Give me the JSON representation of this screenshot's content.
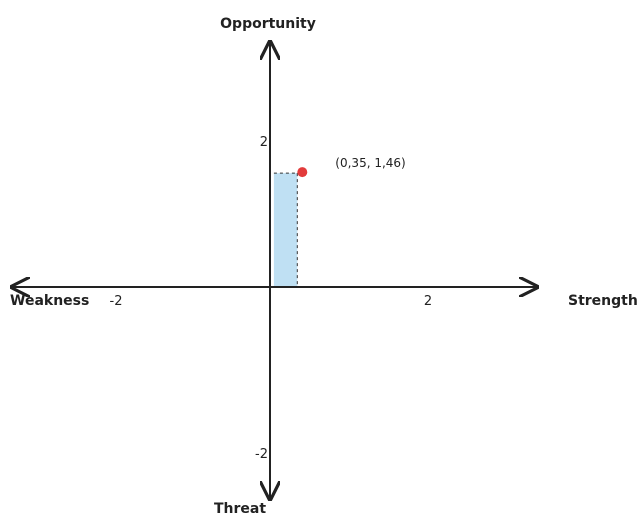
{
  "chart_data": {
    "type": "scatter",
    "axes": {
      "x_positive_label": "Strength",
      "x_negative_label": "Weakness",
      "y_positive_label": "Opportunity",
      "y_negative_label": "Threat",
      "xlim": [
        -2.7,
        2.7
      ],
      "ylim": [
        -2.7,
        2.7
      ],
      "x_ticks": [
        {
          "value": -2,
          "label": "-2"
        },
        {
          "value": 2,
          "label": "2"
        }
      ],
      "y_ticks": [
        {
          "value": 2,
          "label": "2"
        },
        {
          "value": -2,
          "label": "-2"
        }
      ]
    },
    "points": [
      {
        "x": 0.35,
        "y": 1.46,
        "label": "(0,35, 1,46)",
        "color": "#e23b3b"
      }
    ],
    "region": {
      "x0": 0.05,
      "x1": 0.35,
      "y0": 0,
      "y1": 1.46,
      "fill": "#bfe0f3"
    },
    "grid": false
  }
}
